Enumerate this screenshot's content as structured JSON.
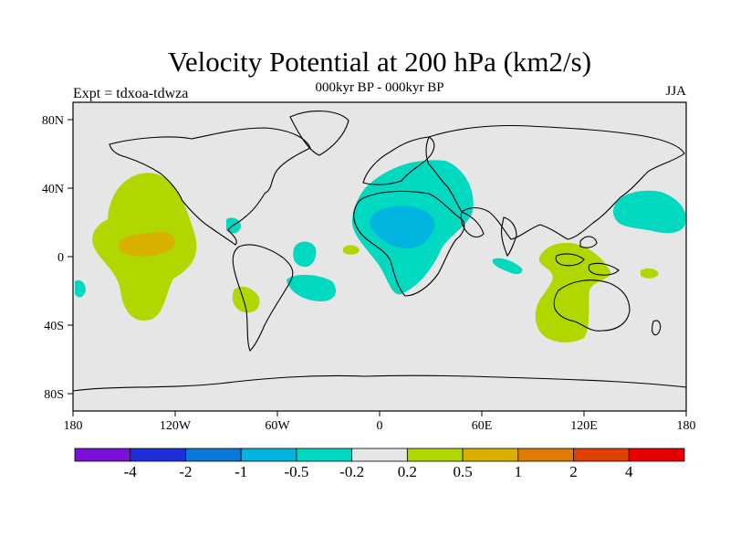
{
  "title": "Velocity Potential at 200 hPa (km2/s)",
  "subtitle": "000kyr BP - 000kyr BP",
  "left_label": "Expt = tdxoa-tdwza",
  "right_label": "JJA",
  "axes": {
    "x_ticks": [
      "180",
      "120W",
      "60W",
      "0",
      "60E",
      "120E",
      "180"
    ],
    "y_ticks": [
      "80N",
      "40N",
      "0",
      "40S",
      "80S"
    ]
  },
  "colorbar": {
    "colors": [
      "#7a10d8",
      "#1f2fd8",
      "#0a78d6",
      "#00b4e0",
      "#00d8c0",
      "#e6e6e6",
      "#b0d800",
      "#d8b000",
      "#e07a00",
      "#e04000",
      "#e80000"
    ],
    "labels": [
      "-4",
      "-2",
      "-1",
      "-0.5",
      "-0.2",
      "0.2",
      "0.5",
      "1",
      "2",
      "4"
    ]
  }
}
